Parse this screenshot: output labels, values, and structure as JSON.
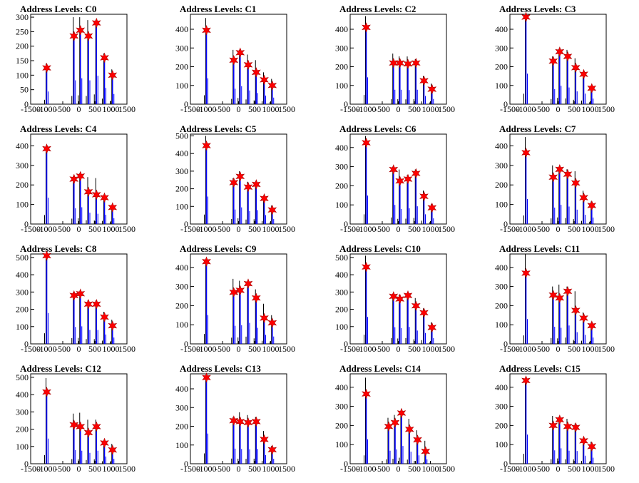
{
  "page": {
    "background": "#ffffff"
  },
  "style": {
    "line_color": "#0000ff",
    "peak_color": "#000000",
    "marker_color": "#ff0000",
    "marker_shape": "star"
  },
  "chart_data": [
    {
      "type": "bar",
      "title": "Address Levels: C0",
      "xlim": [
        -1500,
        1500
      ],
      "ylim": [
        0,
        310
      ],
      "yticks": [
        0,
        50,
        100,
        150,
        200,
        250,
        300
      ],
      "xticks": [
        -1500,
        -1000,
        -500,
        0,
        500,
        1000,
        1500
      ],
      "x": [
        -1000,
        -150,
        50,
        300,
        550,
        800,
        1050
      ],
      "values": [
        125,
        235,
        255,
        235,
        280,
        160,
        100
      ],
      "peaks": [
        140,
        300,
        300,
        290,
        290,
        175,
        120
      ]
    },
    {
      "type": "bar",
      "title": "Address Levels: C1",
      "xlim": [
        -1500,
        1500
      ],
      "ylim": [
        0,
        480
      ],
      "yticks": [
        0,
        100,
        200,
        300,
        400
      ],
      "xticks": [
        -1500,
        -1000,
        -500,
        0,
        500,
        1000,
        1500
      ],
      "x": [
        -1000,
        -150,
        50,
        300,
        550,
        800,
        1050
      ],
      "values": [
        395,
        235,
        275,
        210,
        170,
        130,
        100
      ],
      "peaks": [
        460,
        290,
        290,
        265,
        235,
        170,
        135
      ]
    },
    {
      "type": "bar",
      "title": "Address Levels: C2",
      "xlim": [
        -1500,
        1500
      ],
      "ylim": [
        0,
        480
      ],
      "yticks": [
        0,
        100,
        200,
        300,
        400
      ],
      "xticks": [
        -1500,
        -1000,
        -500,
        0,
        500,
        1000,
        1500
      ],
      "x": [
        -1000,
        -150,
        50,
        300,
        550,
        800,
        1050
      ],
      "values": [
        410,
        220,
        220,
        215,
        220,
        125,
        80
      ],
      "peaks": [
        470,
        270,
        255,
        255,
        240,
        150,
        110
      ]
    },
    {
      "type": "bar",
      "title": "Address Levels: C3",
      "xlim": [
        -1500,
        1500
      ],
      "ylim": [
        0,
        480
      ],
      "yticks": [
        0,
        100,
        200,
        300,
        400
      ],
      "xticks": [
        -1500,
        -1000,
        -500,
        0,
        500,
        1000,
        1500
      ],
      "x": [
        -1000,
        -150,
        50,
        300,
        550,
        800,
        1050
      ],
      "values": [
        465,
        230,
        280,
        255,
        195,
        160,
        85
      ],
      "peaks": [
        470,
        255,
        295,
        290,
        245,
        175,
        100
      ]
    },
    {
      "type": "bar",
      "title": "Address Levels: C4",
      "xlim": [
        -1500,
        1500
      ],
      "ylim": [
        0,
        460
      ],
      "yticks": [
        0,
        100,
        200,
        300,
        400
      ],
      "xticks": [
        -1500,
        -1000,
        -500,
        0,
        500,
        1000,
        1500
      ],
      "x": [
        -1000,
        -150,
        50,
        300,
        550,
        800,
        1050
      ],
      "values": [
        385,
        230,
        245,
        165,
        150,
        135,
        85
      ],
      "peaks": [
        400,
        245,
        260,
        240,
        235,
        150,
        95
      ]
    },
    {
      "type": "bar",
      "title": "Address Levels: C5",
      "xlim": [
        -1500,
        1500
      ],
      "ylim": [
        0,
        510
      ],
      "yticks": [
        0,
        100,
        200,
        300,
        400,
        500
      ],
      "xticks": [
        -1500,
        -1000,
        -500,
        0,
        500,
        1000,
        1500
      ],
      "x": [
        -1000,
        -150,
        50,
        300,
        550,
        800,
        1050
      ],
      "values": [
        445,
        235,
        270,
        210,
        225,
        145,
        80
      ],
      "peaks": [
        500,
        260,
        300,
        240,
        240,
        160,
        105
      ]
    },
    {
      "type": "bar",
      "title": "Address Levels: C6",
      "xlim": [
        -1500,
        1500
      ],
      "ylim": [
        0,
        470
      ],
      "yticks": [
        0,
        100,
        200,
        300,
        400
      ],
      "xticks": [
        -1500,
        -1000,
        -500,
        0,
        500,
        1000,
        1500
      ],
      "x": [
        -1000,
        -150,
        50,
        300,
        550,
        800,
        1050
      ],
      "values": [
        425,
        285,
        225,
        235,
        265,
        145,
        85
      ],
      "peaks": [
        460,
        300,
        285,
        255,
        285,
        175,
        105
      ]
    },
    {
      "type": "bar",
      "title": "Address Levels: C7",
      "xlim": [
        -1500,
        1500
      ],
      "ylim": [
        0,
        460
      ],
      "yticks": [
        0,
        100,
        200,
        300,
        400
      ],
      "xticks": [
        -1500,
        -1000,
        -500,
        0,
        500,
        1000,
        1500
      ],
      "x": [
        -1000,
        -150,
        50,
        300,
        550,
        800,
        1050
      ],
      "values": [
        365,
        240,
        280,
        255,
        210,
        135,
        95
      ],
      "peaks": [
        445,
        300,
        290,
        280,
        270,
        170,
        115
      ]
    },
    {
      "type": "bar",
      "title": "Address Levels: C8",
      "xlim": [
        -1500,
        1500
      ],
      "ylim": [
        0,
        520
      ],
      "yticks": [
        0,
        100,
        200,
        300,
        400,
        500
      ],
      "xticks": [
        -1500,
        -1000,
        -500,
        0,
        500,
        1000,
        1500
      ],
      "x": [
        -1000,
        -150,
        50,
        300,
        550,
        800,
        1050
      ],
      "values": [
        510,
        280,
        290,
        230,
        230,
        155,
        105
      ],
      "peaks": [
        520,
        300,
        290,
        250,
        250,
        185,
        140
      ]
    },
    {
      "type": "bar",
      "title": "Address Levels: C9",
      "xlim": [
        -1500,
        1500
      ],
      "ylim": [
        0,
        470
      ],
      "yticks": [
        0,
        100,
        200,
        300,
        400
      ],
      "xticks": [
        -1500,
        -1000,
        -500,
        0,
        500,
        1000,
        1500
      ],
      "x": [
        -1000,
        -150,
        50,
        300,
        550,
        800,
        1050
      ],
      "values": [
        430,
        270,
        280,
        315,
        240,
        135,
        110
      ],
      "peaks": [
        440,
        340,
        330,
        325,
        285,
        210,
        150
      ]
    },
    {
      "type": "bar",
      "title": "Address Levels: C10",
      "xlim": [
        -1500,
        1500
      ],
      "ylim": [
        0,
        520
      ],
      "yticks": [
        0,
        100,
        200,
        300,
        400,
        500
      ],
      "xticks": [
        -1500,
        -1000,
        -500,
        0,
        500,
        1000,
        1500
      ],
      "x": [
        -1000,
        -150,
        50,
        300,
        550,
        800,
        1050
      ],
      "values": [
        445,
        275,
        260,
        280,
        220,
        180,
        95
      ],
      "peaks": [
        510,
        290,
        285,
        290,
        265,
        205,
        125
      ]
    },
    {
      "type": "bar",
      "title": "Address Levels: C11",
      "xlim": [
        -1500,
        1500
      ],
      "ylim": [
        0,
        470
      ],
      "yticks": [
        0,
        100,
        200,
        300,
        400
      ],
      "xticks": [
        -1500,
        -1000,
        -500,
        0,
        500,
        1000,
        1500
      ],
      "x": [
        -1000,
        -150,
        50,
        300,
        550,
        800,
        1050
      ],
      "values": [
        370,
        255,
        240,
        275,
        175,
        135,
        95
      ],
      "peaks": [
        470,
        300,
        310,
        300,
        275,
        165,
        110
      ]
    },
    {
      "type": "bar",
      "title": "Address Levels: C12",
      "xlim": [
        -1500,
        1500
      ],
      "ylim": [
        0,
        520
      ],
      "yticks": [
        0,
        100,
        200,
        300,
        400,
        500
      ],
      "xticks": [
        -1500,
        -1000,
        -500,
        0,
        500,
        1000,
        1500
      ],
      "x": [
        -1000,
        -150,
        50,
        300,
        550,
        800,
        1050
      ],
      "values": [
        415,
        225,
        215,
        180,
        215,
        120,
        80
      ],
      "peaks": [
        495,
        290,
        295,
        255,
        255,
        135,
        115
      ]
    },
    {
      "type": "bar",
      "title": "Address Levels: C13",
      "xlim": [
        -1500,
        1500
      ],
      "ylim": [
        0,
        480
      ],
      "yticks": [
        0,
        100,
        200,
        300,
        400
      ],
      "xticks": [
        -1500,
        -1000,
        -500,
        0,
        500,
        1000,
        1500
      ],
      "x": [
        -1000,
        -150,
        50,
        300,
        550,
        800,
        1050
      ],
      "values": [
        460,
        230,
        225,
        220,
        225,
        130,
        75
      ],
      "peaks": [
        470,
        250,
        275,
        260,
        250,
        175,
        95
      ]
    },
    {
      "type": "bar",
      "title": "Address Levels: C14",
      "xlim": [
        -1500,
        1500
      ],
      "ylim": [
        0,
        470
      ],
      "yticks": [
        0,
        100,
        200,
        300,
        400
      ],
      "xticks": [
        -1500,
        -1000,
        -500,
        0,
        500,
        1000,
        1500
      ],
      "x": [
        -1000,
        -300,
        -100,
        100,
        350,
        600,
        850
      ],
      "values": [
        365,
        195,
        215,
        265,
        180,
        125,
        65
      ],
      "peaks": [
        450,
        240,
        255,
        270,
        235,
        175,
        120
      ]
    },
    {
      "type": "bar",
      "title": "Address Levels: C15",
      "xlim": [
        -1500,
        1500
      ],
      "ylim": [
        0,
        470
      ],
      "yticks": [
        0,
        100,
        200,
        300,
        400
      ],
      "xticks": [
        -1500,
        -1000,
        -500,
        0,
        500,
        1000,
        1500
      ],
      "x": [
        -1000,
        -150,
        50,
        300,
        550,
        800,
        1050
      ],
      "values": [
        435,
        200,
        230,
        195,
        190,
        120,
        90
      ],
      "peaks": [
        440,
        250,
        245,
        235,
        210,
        135,
        115
      ]
    }
  ]
}
